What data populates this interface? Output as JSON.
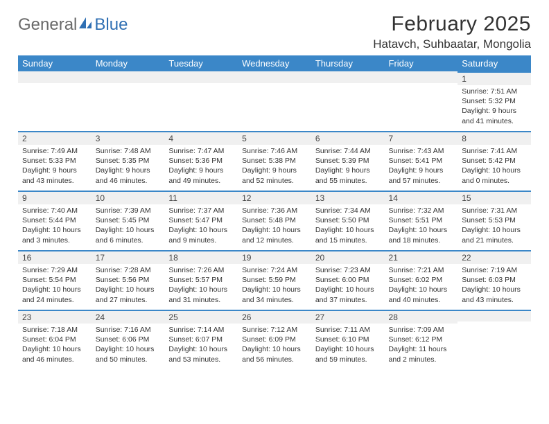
{
  "logo": {
    "text_a": "General",
    "text_b": "Blue",
    "sail_color": "#2f6fb3",
    "gray": "#6a6a6a"
  },
  "title": "February 2025",
  "location": "Hatavch, Suhbaatar, Mongolia",
  "header_bg": "#3b87c8",
  "row_accent": "#3b87c8",
  "cell_gray": "#f0f0f0",
  "weekdays": [
    "Sunday",
    "Monday",
    "Tuesday",
    "Wednesday",
    "Thursday",
    "Friday",
    "Saturday"
  ],
  "weeks": [
    [
      null,
      null,
      null,
      null,
      null,
      null,
      {
        "n": "1",
        "sunrise": "7:51 AM",
        "sunset": "5:32 PM",
        "daylight": "9 hours and 41 minutes."
      }
    ],
    [
      {
        "n": "2",
        "sunrise": "7:49 AM",
        "sunset": "5:33 PM",
        "daylight": "9 hours and 43 minutes."
      },
      {
        "n": "3",
        "sunrise": "7:48 AM",
        "sunset": "5:35 PM",
        "daylight": "9 hours and 46 minutes."
      },
      {
        "n": "4",
        "sunrise": "7:47 AM",
        "sunset": "5:36 PM",
        "daylight": "9 hours and 49 minutes."
      },
      {
        "n": "5",
        "sunrise": "7:46 AM",
        "sunset": "5:38 PM",
        "daylight": "9 hours and 52 minutes."
      },
      {
        "n": "6",
        "sunrise": "7:44 AM",
        "sunset": "5:39 PM",
        "daylight": "9 hours and 55 minutes."
      },
      {
        "n": "7",
        "sunrise": "7:43 AM",
        "sunset": "5:41 PM",
        "daylight": "9 hours and 57 minutes."
      },
      {
        "n": "8",
        "sunrise": "7:41 AM",
        "sunset": "5:42 PM",
        "daylight": "10 hours and 0 minutes."
      }
    ],
    [
      {
        "n": "9",
        "sunrise": "7:40 AM",
        "sunset": "5:44 PM",
        "daylight": "10 hours and 3 minutes."
      },
      {
        "n": "10",
        "sunrise": "7:39 AM",
        "sunset": "5:45 PM",
        "daylight": "10 hours and 6 minutes."
      },
      {
        "n": "11",
        "sunrise": "7:37 AM",
        "sunset": "5:47 PM",
        "daylight": "10 hours and 9 minutes."
      },
      {
        "n": "12",
        "sunrise": "7:36 AM",
        "sunset": "5:48 PM",
        "daylight": "10 hours and 12 minutes."
      },
      {
        "n": "13",
        "sunrise": "7:34 AM",
        "sunset": "5:50 PM",
        "daylight": "10 hours and 15 minutes."
      },
      {
        "n": "14",
        "sunrise": "7:32 AM",
        "sunset": "5:51 PM",
        "daylight": "10 hours and 18 minutes."
      },
      {
        "n": "15",
        "sunrise": "7:31 AM",
        "sunset": "5:53 PM",
        "daylight": "10 hours and 21 minutes."
      }
    ],
    [
      {
        "n": "16",
        "sunrise": "7:29 AM",
        "sunset": "5:54 PM",
        "daylight": "10 hours and 24 minutes."
      },
      {
        "n": "17",
        "sunrise": "7:28 AM",
        "sunset": "5:56 PM",
        "daylight": "10 hours and 27 minutes."
      },
      {
        "n": "18",
        "sunrise": "7:26 AM",
        "sunset": "5:57 PM",
        "daylight": "10 hours and 31 minutes."
      },
      {
        "n": "19",
        "sunrise": "7:24 AM",
        "sunset": "5:59 PM",
        "daylight": "10 hours and 34 minutes."
      },
      {
        "n": "20",
        "sunrise": "7:23 AM",
        "sunset": "6:00 PM",
        "daylight": "10 hours and 37 minutes."
      },
      {
        "n": "21",
        "sunrise": "7:21 AM",
        "sunset": "6:02 PM",
        "daylight": "10 hours and 40 minutes."
      },
      {
        "n": "22",
        "sunrise": "7:19 AM",
        "sunset": "6:03 PM",
        "daylight": "10 hours and 43 minutes."
      }
    ],
    [
      {
        "n": "23",
        "sunrise": "7:18 AM",
        "sunset": "6:04 PM",
        "daylight": "10 hours and 46 minutes."
      },
      {
        "n": "24",
        "sunrise": "7:16 AM",
        "sunset": "6:06 PM",
        "daylight": "10 hours and 50 minutes."
      },
      {
        "n": "25",
        "sunrise": "7:14 AM",
        "sunset": "6:07 PM",
        "daylight": "10 hours and 53 minutes."
      },
      {
        "n": "26",
        "sunrise": "7:12 AM",
        "sunset": "6:09 PM",
        "daylight": "10 hours and 56 minutes."
      },
      {
        "n": "27",
        "sunrise": "7:11 AM",
        "sunset": "6:10 PM",
        "daylight": "10 hours and 59 minutes."
      },
      {
        "n": "28",
        "sunrise": "7:09 AM",
        "sunset": "6:12 PM",
        "daylight": "11 hours and 2 minutes."
      },
      null
    ]
  ],
  "labels": {
    "sunrise": "Sunrise: ",
    "sunset": "Sunset: ",
    "daylight": "Daylight: "
  }
}
